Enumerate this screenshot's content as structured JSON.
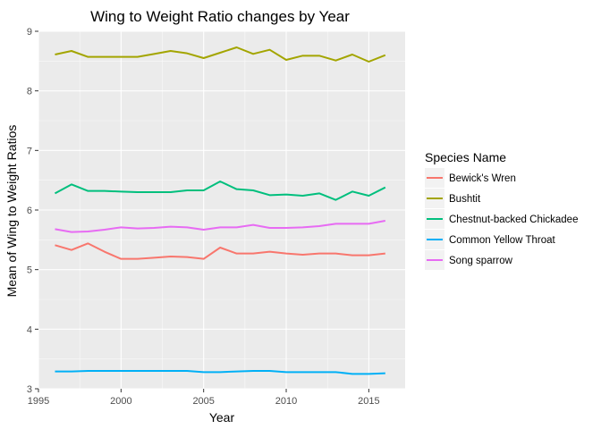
{
  "chart_data": {
    "type": "line",
    "title": "Wing to Weight Ratio changes by Year",
    "xlabel": "Year",
    "ylabel": "Mean of Wing to Weight Ratios",
    "xlim": [
      1995,
      2017.2
    ],
    "ylim": [
      3,
      9
    ],
    "x_ticks": [
      1995,
      2000,
      2005,
      2010,
      2015
    ],
    "y_ticks": [
      3,
      4,
      5,
      6,
      7,
      8,
      9
    ],
    "grid": true,
    "legend": {
      "title": "Species Name",
      "position": "right"
    },
    "x": [
      1996,
      1997,
      1998,
      1999,
      2000,
      2001,
      2002,
      2003,
      2004,
      2005,
      2006,
      2007,
      2008,
      2009,
      2010,
      2011,
      2012,
      2013,
      2014,
      2015,
      2016
    ],
    "series": [
      {
        "name": "Bewick's Wren",
        "color": "#F8766D",
        "values": [
          5.41,
          5.33,
          5.44,
          5.3,
          5.18,
          5.18,
          5.2,
          5.22,
          5.21,
          5.18,
          5.37,
          5.27,
          5.27,
          5.3,
          5.27,
          5.25,
          5.27,
          5.27,
          5.24,
          5.24,
          5.27
        ]
      },
      {
        "name": "Bushtit",
        "color": "#A3A500",
        "values": [
          8.61,
          8.67,
          8.57,
          8.57,
          8.57,
          8.57,
          8.62,
          8.67,
          8.63,
          8.55,
          8.64,
          8.73,
          8.62,
          8.69,
          8.52,
          8.59,
          8.59,
          8.51,
          8.61,
          8.49,
          8.6
        ]
      },
      {
        "name": "Chestnut-backed Chickadee",
        "color": "#00BF7D",
        "values": [
          6.28,
          6.43,
          6.32,
          6.32,
          6.31,
          6.3,
          6.3,
          6.3,
          6.33,
          6.33,
          6.48,
          6.35,
          6.33,
          6.25,
          6.26,
          6.24,
          6.28,
          6.17,
          6.31,
          6.24,
          6.38
        ]
      },
      {
        "name": "Common Yellow Throat",
        "color": "#00B0F6",
        "values": [
          3.29,
          3.29,
          3.3,
          3.3,
          3.3,
          3.3,
          3.3,
          3.3,
          3.3,
          3.28,
          3.28,
          3.29,
          3.3,
          3.3,
          3.28,
          3.28,
          3.28,
          3.28,
          3.25,
          3.25,
          3.26
        ]
      },
      {
        "name": "Song sparrow",
        "color": "#E76BF3",
        "values": [
          5.68,
          5.63,
          5.64,
          5.67,
          5.71,
          5.69,
          5.7,
          5.72,
          5.71,
          5.67,
          5.71,
          5.71,
          5.75,
          5.7,
          5.7,
          5.71,
          5.73,
          5.77,
          5.77,
          5.77,
          5.82
        ]
      }
    ]
  }
}
